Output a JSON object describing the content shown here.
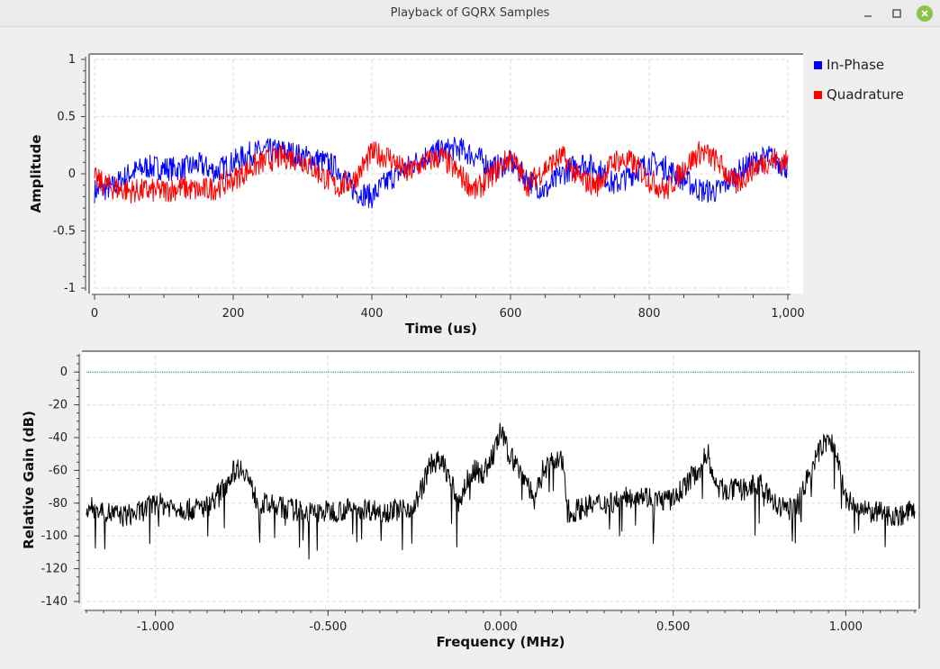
{
  "window": {
    "title": "Playback of GQRX Samples",
    "minimize_icon": "minimize-icon",
    "maximize_icon": "maximize-icon",
    "close_icon": "close-icon"
  },
  "chart_data": [
    {
      "type": "line",
      "title": "",
      "xlabel": "Time (us)",
      "ylabel": "Amplitude",
      "xlim": [
        0,
        1000
      ],
      "ylim": [
        -1,
        1
      ],
      "x_ticks": [
        "0",
        "200",
        "400",
        "600",
        "800",
        "1,000"
      ],
      "y_ticks": [
        "1",
        "0.5",
        "0",
        "-0.5",
        "-1"
      ],
      "grid": true,
      "legend_position": "right",
      "series": [
        {
          "name": "In-Phase",
          "color": "#0000ff",
          "x": [
            0,
            25,
            50,
            75,
            100,
            125,
            150,
            175,
            200,
            225,
            250,
            275,
            300,
            325,
            350,
            375,
            400,
            425,
            450,
            475,
            500,
            525,
            550,
            575,
            600,
            625,
            650,
            675,
            700,
            725,
            750,
            775,
            800,
            825,
            850,
            875,
            900,
            925,
            950,
            975,
            1000
          ],
          "values": [
            -0.15,
            -0.12,
            0.0,
            0.06,
            0.05,
            0.04,
            0.08,
            0.02,
            0.1,
            0.18,
            0.2,
            0.2,
            0.15,
            0.12,
            0.05,
            -0.15,
            -0.2,
            -0.05,
            0.05,
            0.15,
            0.2,
            0.22,
            0.15,
            0.05,
            0.1,
            -0.05,
            -0.15,
            0.0,
            0.1,
            0.05,
            -0.1,
            0.0,
            0.1,
            0.05,
            -0.05,
            -0.15,
            -0.15,
            0.0,
            0.1,
            0.15,
            0.05
          ]
        },
        {
          "name": "Quadrature",
          "color": "#ff0000",
          "x": [
            0,
            25,
            50,
            75,
            100,
            125,
            150,
            175,
            200,
            225,
            250,
            275,
            300,
            325,
            350,
            375,
            400,
            425,
            450,
            475,
            500,
            525,
            550,
            575,
            600,
            625,
            650,
            675,
            700,
            725,
            750,
            775,
            800,
            825,
            850,
            875,
            900,
            925,
            950,
            975,
            1000
          ],
          "values": [
            -0.05,
            -0.12,
            -0.15,
            -0.15,
            -0.15,
            -0.12,
            -0.15,
            -0.12,
            -0.05,
            0.05,
            0.12,
            0.15,
            0.12,
            0.0,
            -0.12,
            -0.05,
            0.18,
            0.15,
            0.0,
            0.1,
            0.15,
            0.0,
            -0.15,
            0.0,
            0.15,
            -0.1,
            0.05,
            0.15,
            -0.05,
            -0.1,
            0.12,
            0.1,
            -0.05,
            -0.15,
            0.05,
            0.2,
            0.1,
            -0.1,
            0.05,
            0.12,
            0.1
          ]
        }
      ]
    },
    {
      "type": "line",
      "title": "",
      "xlabel": "Frequency (MHz)",
      "ylabel": "Relative Gain (dB)",
      "xlim": [
        -1.2,
        1.2
      ],
      "ylim": [
        -140,
        10
      ],
      "x_ticks": [
        "-1.000",
        "-0.500",
        "0.000",
        "0.500",
        "1.000"
      ],
      "y_ticks": [
        "0",
        "-20",
        "-40",
        "-60",
        "-80",
        "-100",
        "-120",
        "-140"
      ],
      "grid": true,
      "reference_line": {
        "y": 0,
        "color": "#2a8ca0"
      },
      "series": [
        {
          "name": "",
          "color": "#000000",
          "x": [
            -1.2,
            -1.15,
            -1.1,
            -1.05,
            -1.0,
            -0.95,
            -0.9,
            -0.85,
            -0.8,
            -0.78,
            -0.76,
            -0.74,
            -0.72,
            -0.7,
            -0.65,
            -0.6,
            -0.55,
            -0.5,
            -0.45,
            -0.4,
            -0.35,
            -0.3,
            -0.25,
            -0.2,
            -0.18,
            -0.16,
            -0.14,
            -0.12,
            -0.1,
            -0.08,
            -0.05,
            -0.02,
            0.0,
            0.02,
            0.05,
            0.08,
            0.1,
            0.12,
            0.15,
            0.18,
            0.2,
            0.22,
            0.25,
            0.3,
            0.35,
            0.4,
            0.45,
            0.5,
            0.55,
            0.58,
            0.6,
            0.62,
            0.65,
            0.7,
            0.75,
            0.8,
            0.85,
            0.9,
            0.92,
            0.94,
            0.96,
            0.98,
            1.0,
            1.05,
            1.1,
            1.15,
            1.2
          ],
          "values": [
            -82,
            -85,
            -88,
            -86,
            -80,
            -82,
            -84,
            -82,
            -70,
            -62,
            -58,
            -60,
            -72,
            -80,
            -82,
            -84,
            -86,
            -85,
            -84,
            -83,
            -85,
            -84,
            -82,
            -55,
            -55,
            -58,
            -70,
            -80,
            -68,
            -60,
            -62,
            -50,
            -36,
            -48,
            -58,
            -68,
            -80,
            -60,
            -55,
            -55,
            -88,
            -84,
            -82,
            -80,
            -78,
            -74,
            -78,
            -78,
            -65,
            -58,
            -48,
            -70,
            -72,
            -72,
            -68,
            -82,
            -84,
            -60,
            -50,
            -42,
            -44,
            -55,
            -78,
            -85,
            -86,
            -88,
            -84
          ]
        }
      ]
    }
  ]
}
